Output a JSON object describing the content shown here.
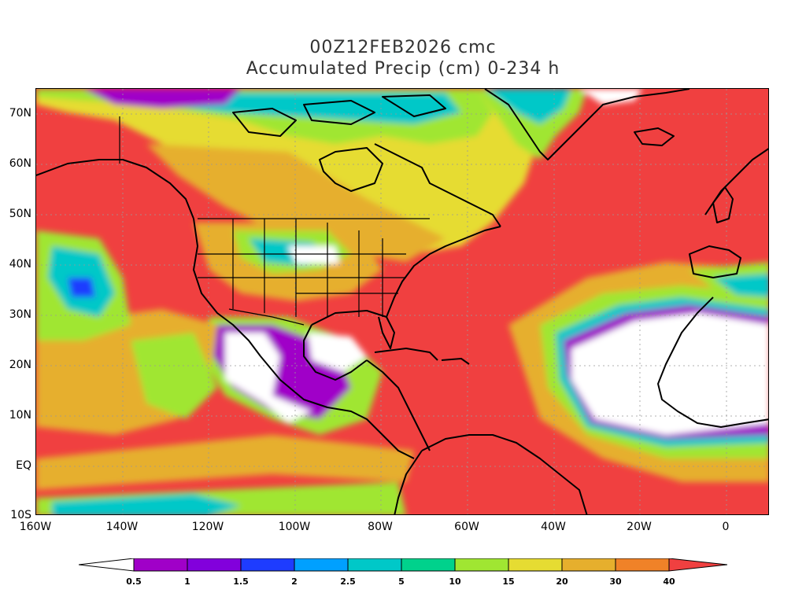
{
  "title": {
    "line1": "00Z12FEB2026 cmc",
    "line2": "Accumulated Precip (cm) 0-234 h"
  },
  "map": {
    "lon_range": [
      -160,
      10
    ],
    "lat_range": [
      -10,
      75
    ],
    "lat_labels": [
      "70N",
      "60N",
      "50N",
      "40N",
      "30N",
      "20N",
      "10N",
      "EQ",
      "10S"
    ],
    "lon_labels": [
      "160W",
      "140W",
      "120W",
      "100W",
      "80W",
      "60W",
      "40W",
      "20W",
      "0"
    ],
    "background_color": "#f04040"
  },
  "colorbar": {
    "labels": [
      "0.5",
      "1",
      "1.5",
      "2",
      "2.5",
      "5",
      "10",
      "15",
      "20",
      "30",
      "40"
    ],
    "colors": [
      "#ffffff",
      "#a000c8",
      "#8200dc",
      "#1e3cff",
      "#00a0ff",
      "#00c8c8",
      "#00d28c",
      "#a0e632",
      "#e6dc32",
      "#e6af2d",
      "#f08228",
      "#f04040"
    ]
  }
}
